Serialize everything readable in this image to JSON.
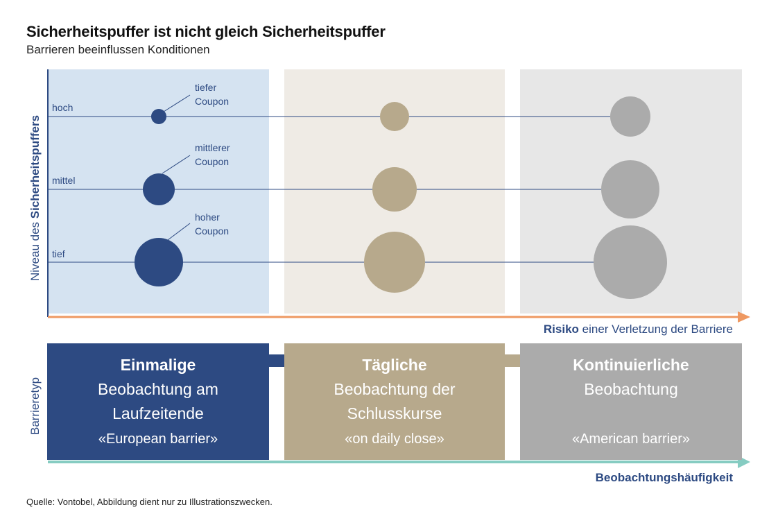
{
  "title": "Sicherheitspuffer ist nicht gleich Sicherheitspuffer",
  "subtitle": "Barrieren beeinflussen Konditionen",
  "y_axis_label": {
    "light": "Niveau des ",
    "bold": "Sicherheitspuffers"
  },
  "levels": [
    "hoch",
    "mittel",
    "tief"
  ],
  "annotations": [
    {
      "line1": "tiefer",
      "line2": "Coupon"
    },
    {
      "line1": "mittlerer",
      "line2": "Coupon"
    },
    {
      "line1": "hoher",
      "line2": "Coupon"
    }
  ],
  "risk_axis": {
    "bold": "Risiko",
    "rest": " einer Verletzung der Barriere"
  },
  "barrier_label": "Barrieretyp",
  "observation_axis": "Beobachtungshäufigkeit",
  "panels": [
    {
      "head": "Einmalige",
      "line1": "Beobachtung am",
      "line2": "Laufzeitende",
      "quote": "«European barrier»",
      "color": "#2d4a82"
    },
    {
      "head": "Tägliche",
      "line1": "Beobachtung der",
      "line2": "Schlusskurse",
      "quote": "«on daily close»",
      "color": "#b7a98c"
    },
    {
      "head": "Kontinuierliche",
      "line1": "Beobachtung",
      "line2": "",
      "quote": "«American barrier»",
      "color": "#ababab"
    }
  ],
  "colors": {
    "navy": "#2d4a82",
    "taupe": "#b7a98c",
    "grey": "#ababab",
    "bg_blue": "#d5e3f1",
    "bg_beige": "#efebe5",
    "bg_grey": "#e7e7e7",
    "risk_arrow": "#ee9861",
    "observation_arrow": "#86ccc2"
  },
  "source": "Quelle: Vontobel, Abbildung dient nur zu Illustrationszwecken."
}
